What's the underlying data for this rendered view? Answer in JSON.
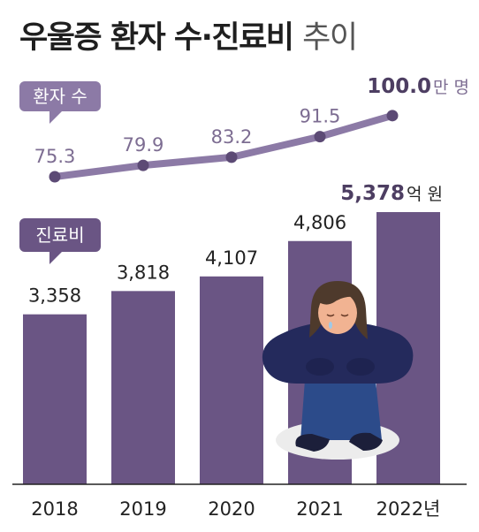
{
  "title": {
    "main": "우울증 환자 수·진료비",
    "suffix": "추이"
  },
  "colors": {
    "bar": "#6a5584",
    "line": "#8c7aa6",
    "text_light": "#7d6d92",
    "text_dark": "#4d3e62",
    "axis": "#222222"
  },
  "illustration": "sad-person-hugging-knees-illustration",
  "chart_data": [
    {
      "type": "line",
      "label": "환자 수",
      "categories": [
        "2018",
        "2019",
        "2020",
        "2021",
        "2022년"
      ],
      "values": [
        75.3,
        79.9,
        83.2,
        91.5,
        100.0
      ],
      "value_labels": [
        "75.3",
        "79.9",
        "83.2",
        "91.5",
        "100.0"
      ],
      "unit": "만 명"
    },
    {
      "type": "bar",
      "label": "진료비",
      "categories": [
        "2018",
        "2019",
        "2020",
        "2021",
        "2022년"
      ],
      "values": [
        3358,
        3818,
        4107,
        4806,
        5378
      ],
      "value_labels": [
        "3,358",
        "3,818",
        "4,107",
        "4,806",
        "5,378"
      ],
      "unit": "억 원",
      "grid": false
    }
  ]
}
